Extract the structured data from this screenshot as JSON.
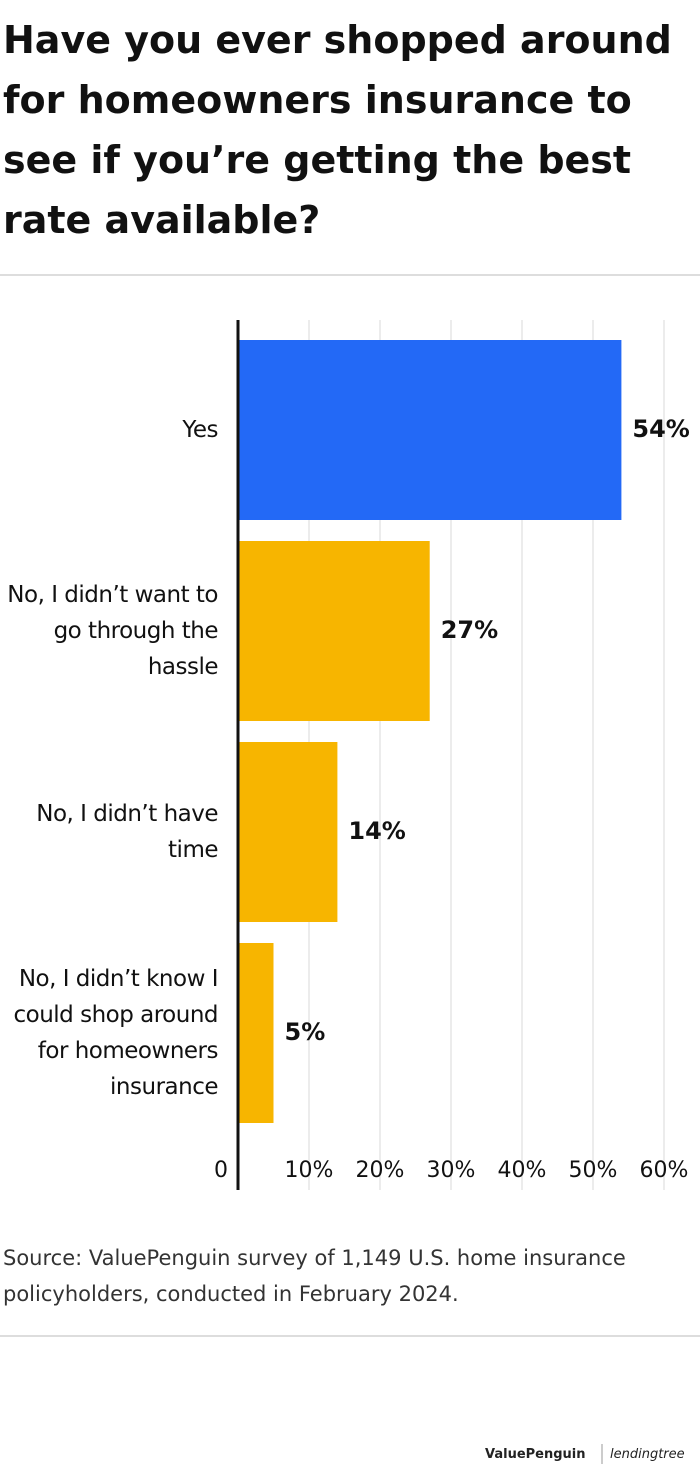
{
  "chart_data": {
    "type": "bar",
    "orientation": "horizontal",
    "title": "Have you ever shopped around for homeowners insurance to see if you’re getting the best rate available?",
    "categories": [
      "Yes",
      "No, I didn’t want to go through the hassle",
      "No, I didn’t have time",
      "No, I didn’t know I could shop around for homeowners insurance"
    ],
    "values": [
      54,
      27,
      14,
      5
    ],
    "value_labels": [
      "54%",
      "27%",
      "14%",
      "5%"
    ],
    "colors": [
      "#2369f6",
      "#f7b500",
      "#f7b500",
      "#f7b500"
    ],
    "xlim": [
      0,
      60
    ],
    "xticks": [
      0,
      {
        "value": 10,
        "label": "10%"
      },
      {
        "value": 20,
        "label": "20%"
      },
      {
        "value": 30,
        "label": "30%"
      },
      {
        "value": 40,
        "label": "40%"
      },
      {
        "value": 50,
        "label": "50%"
      },
      {
        "value": 60,
        "label": "60%"
      }
    ],
    "grid": true,
    "source": "Source: ValuePenguin survey of 1,149 U.S. home insurance policyholders, conducted in February 2024.",
    "brands": [
      "ValuePenguin",
      "lendingtree"
    ]
  }
}
